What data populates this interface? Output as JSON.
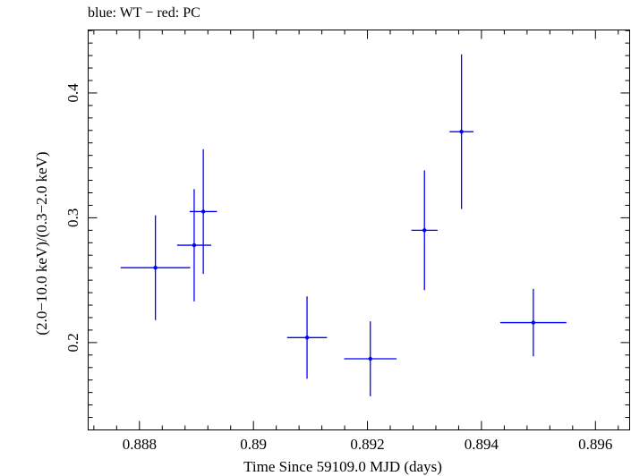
{
  "chart_data": {
    "type": "scatter",
    "title": "blue: WT − red: PC",
    "xlabel": "Time Since 59109.0 MJD (days)",
    "ylabel": "(2.0−10.0 keV)/(0.3−2.0 keV)",
    "xlim": [
      0.8871,
      0.8966
    ],
    "ylim": [
      0.13,
      0.4505
    ],
    "x_ticks": [
      0.888,
      0.89,
      0.892,
      0.894,
      0.896
    ],
    "x_tick_labels": [
      "0.888",
      "0.89",
      "0.892",
      "0.894",
      "0.896"
    ],
    "y_ticks": [
      0.2,
      0.3,
      0.4
    ],
    "y_tick_labels": [
      "0.2",
      "0.3",
      "0.4"
    ],
    "grid": false,
    "series": [
      {
        "name": "WT",
        "color": "#0000ff",
        "points": [
          {
            "x": 0.88828,
            "xerr": 0.00061,
            "y": 0.26,
            "yerr": 0.042
          },
          {
            "x": 0.88912,
            "xerr": 0.00024,
            "y": 0.305,
            "yerr": 0.05
          },
          {
            "x": 0.88896,
            "xerr": 0.0003,
            "y": 0.278,
            "yerr": 0.045
          },
          {
            "x": 0.89094,
            "xerr": 0.00035,
            "y": 0.204,
            "yerr": 0.033
          },
          {
            "x": 0.89205,
            "xerr": 0.00046,
            "y": 0.187,
            "yerr": 0.03
          },
          {
            "x": 0.893,
            "xerr": 0.00023,
            "y": 0.29,
            "yerr": 0.048
          },
          {
            "x": 0.89365,
            "xerr": 0.00021,
            "y": 0.369,
            "yerr": 0.062
          },
          {
            "x": 0.89491,
            "xerr": 0.00058,
            "y": 0.216,
            "yerr": 0.027
          }
        ]
      }
    ]
  }
}
